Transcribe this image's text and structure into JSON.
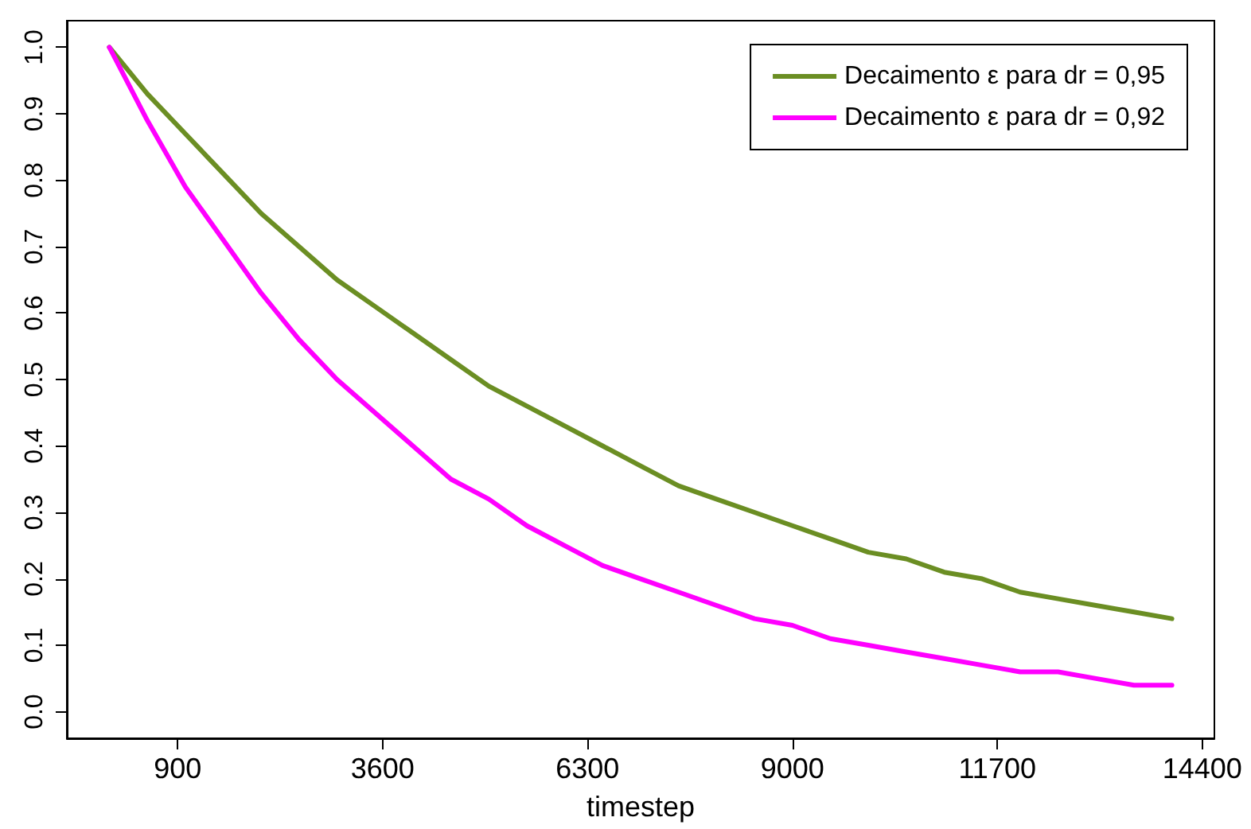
{
  "chart_data": {
    "type": "line",
    "xlabel": "timestep",
    "x": [
      0,
      500,
      1000,
      1500,
      2000,
      2500,
      3000,
      3500,
      4000,
      4500,
      5000,
      5500,
      6000,
      6500,
      7000,
      7500,
      8000,
      8500,
      9000,
      9500,
      10000,
      10500,
      11000,
      11500,
      12000,
      12500,
      13000,
      13500,
      14000
    ],
    "series": [
      {
        "name": "Decaimento ε para dr = 0,95",
        "color": "#6b8e23",
        "values": [
          1.0,
          0.93,
          0.87,
          0.81,
          0.75,
          0.7,
          0.65,
          0.61,
          0.57,
          0.53,
          0.49,
          0.46,
          0.43,
          0.4,
          0.37,
          0.34,
          0.32,
          0.3,
          0.28,
          0.26,
          0.24,
          0.23,
          0.21,
          0.2,
          0.18,
          0.17,
          0.16,
          0.15,
          0.14
        ]
      },
      {
        "name": "Decaimento ε para dr = 0,92",
        "color": "#ff00ff",
        "values": [
          1.0,
          0.89,
          0.79,
          0.71,
          0.63,
          0.56,
          0.5,
          0.45,
          0.4,
          0.35,
          0.32,
          0.28,
          0.25,
          0.22,
          0.2,
          0.18,
          0.16,
          0.14,
          0.13,
          0.11,
          0.1,
          0.09,
          0.08,
          0.07,
          0.06,
          0.06,
          0.05,
          0.04,
          0.04
        ]
      }
    ],
    "xlim": [
      -560,
      14560
    ],
    "xticks": [
      900,
      3600,
      6300,
      9000,
      11700,
      14400
    ],
    "ylim": [
      -0.04,
      1.04
    ],
    "yticks": [
      {
        "value": 0,
        "label": "0.0"
      },
      {
        "value": 0.1,
        "label": "0.1"
      },
      {
        "value": 0.2,
        "label": "0.2"
      },
      {
        "value": 0.3,
        "label": "0.3"
      },
      {
        "value": 0.4,
        "label": "0.4"
      },
      {
        "value": 0.5,
        "label": "0.5"
      },
      {
        "value": 0.6,
        "label": "0.6"
      },
      {
        "value": 0.7,
        "label": "0.7"
      },
      {
        "value": 0.8,
        "label": "0.8"
      },
      {
        "value": 0.9,
        "label": "0.9"
      },
      {
        "value": 1.0,
        "label": "1.0"
      }
    ],
    "grid": false,
    "legend": "top right",
    "marker": "none",
    "line_style": "solid"
  }
}
